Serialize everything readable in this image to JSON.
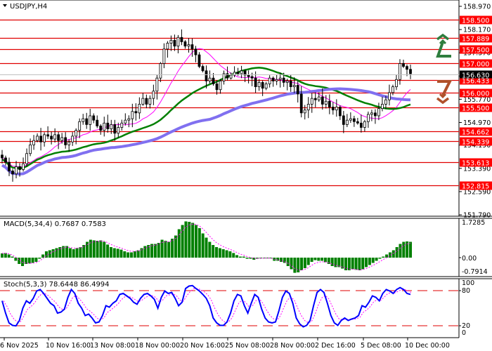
{
  "header": {
    "symbol_title": "USDJPY,H4"
  },
  "colors": {
    "level_line": "#e00000",
    "level_label_bg": "#ff0000",
    "current_price_bg": "#000000",
    "ma_fast": "#ff00ff",
    "ma_mid": "#008000",
    "ma_slow": "#8070f0",
    "macd_hist": "#008000",
    "macd_signal": "#ff00ff",
    "stoch_main": "#0000ff",
    "stoch_signal": "#ff00ff",
    "stoch_level": "#e00000",
    "arrow_up": "#2e7d3e",
    "arrow_down": "#b0502a"
  },
  "price_axis": {
    "ticks": [
      "158.970",
      "158.170",
      "157.370",
      "156.570",
      "155.770",
      "154.970",
      "154.190",
      "153.390",
      "152.590",
      "151.790"
    ],
    "current_price": "156.630"
  },
  "levels": [
    "158.500",
    "157.889",
    "157.500",
    "157.000",
    "156.433",
    "156.000",
    "155.500",
    "154.662",
    "154.339",
    "153.613",
    "152.815"
  ],
  "macd": {
    "label": "MACD(5,34,4) 0.7687 0.7583",
    "axis": [
      "1.7285",
      "0.00",
      "-0.7914"
    ]
  },
  "stoch": {
    "label": "Stoch(5,3,3) 78.6448 86.4994",
    "axis": [
      "100",
      "80",
      "20",
      "0"
    ]
  },
  "time_axis": [
    "6 Nov 2025",
    "10 Nov 16:00",
    "13 Nov 08:00",
    "18 Nov 00:00",
    "20 Nov 16:00",
    "25 Nov 08:00",
    "28 Nov 00:00",
    "2 Dec 16:00",
    "5 Dec 08:00",
    "10 Dec 00:00"
  ],
  "chart_data": [
    {
      "type": "candlestick",
      "title": "USDJPY,H4",
      "ylim": [
        151.79,
        158.97
      ],
      "xlabel": "",
      "ylabel": "",
      "x_ticks": [
        "6 Nov 2025",
        "10 Nov 16:00",
        "13 Nov 08:00",
        "18 Nov 00:00",
        "20 Nov 16:00",
        "25 Nov 08:00",
        "28 Nov 00:00",
        "2 Dec 16:00",
        "5 Dec 08:00",
        "10 Dec 00:00"
      ],
      "horizontal_levels": [
        158.5,
        157.889,
        157.5,
        157.0,
        156.433,
        156.0,
        155.5,
        154.662,
        154.339,
        153.613,
        152.815
      ],
      "current_price": 156.63,
      "close_approx": [
        153.75,
        153.6,
        153.3,
        153.2,
        153.45,
        153.35,
        153.55,
        153.9,
        154.2,
        154.35,
        154.5,
        154.3,
        154.55,
        154.5,
        154.4,
        154.55,
        154.35,
        154.45,
        154.2,
        154.3,
        154.5,
        154.7,
        155.0,
        155.1,
        154.9,
        155.2,
        155.05,
        154.85,
        154.7,
        154.95,
        154.75,
        154.9,
        154.6,
        154.8,
        154.95,
        155.05,
        155.1,
        155.35,
        155.3,
        155.6,
        155.8,
        155.6,
        155.8,
        156.05,
        156.5,
        157.0,
        157.5,
        157.7,
        157.8,
        157.6,
        157.9,
        157.75,
        157.6,
        157.65,
        157.5,
        157.3,
        156.9,
        156.75,
        156.4,
        156.5,
        156.3,
        156.1,
        156.4,
        156.65,
        156.5,
        156.6,
        156.7,
        156.65,
        156.75,
        156.6,
        156.55,
        156.5,
        156.2,
        156.35,
        156.15,
        156.3,
        156.5,
        156.4,
        156.45,
        156.5,
        156.35,
        156.4,
        156.2,
        156.25,
        155.95,
        155.3,
        155.4,
        155.6,
        155.8,
        155.75,
        155.85,
        155.6,
        155.7,
        155.5,
        155.4,
        155.5,
        155.2,
        154.9,
        155.05,
        155.1,
        155.0,
        154.95,
        154.8,
        155.0,
        155.25,
        155.3,
        155.2,
        155.45,
        155.6,
        155.75,
        156.0,
        156.2,
        156.45,
        157.0,
        156.9,
        156.8,
        156.65
      ],
      "series": [
        {
          "name": "MA fast (magenta)",
          "start": 153.75,
          "peak": 156.35,
          "end": 155.75
        },
        {
          "name": "MA mid (green)",
          "start": 153.4,
          "peak": 155.95,
          "end": 155.65
        },
        {
          "name": "MA slow (purple)",
          "start": 152.6,
          "end": 155.5
        }
      ]
    },
    {
      "type": "bar",
      "title": "MACD(5,34,4) 0.7687 0.7583",
      "ylim": [
        -0.7914,
        1.7285
      ],
      "series": [
        {
          "name": "MACD histogram",
          "values": [
            0.2,
            0.22,
            0.15,
            0.05,
            -0.15,
            -0.3,
            -0.4,
            -0.3,
            -0.28,
            -0.25,
            -0.2,
            -0.05,
            0.15,
            0.3,
            0.35,
            0.4,
            0.45,
            0.5,
            0.55,
            0.55,
            0.45,
            0.4,
            0.45,
            0.5,
            0.6,
            0.75,
            0.85,
            0.82,
            0.8,
            0.82,
            0.75,
            0.62,
            0.5,
            0.45,
            0.42,
            0.38,
            0.3,
            0.25,
            0.25,
            0.3,
            0.35,
            0.45,
            0.55,
            0.6,
            0.65,
            0.65,
            0.7,
            0.85,
            0.8,
            0.75,
            0.9,
            1.05,
            1.35,
            1.55,
            1.72,
            1.7,
            1.65,
            1.55,
            1.4,
            1.15,
            0.95,
            0.75,
            0.6,
            0.5,
            0.45,
            0.4,
            0.35,
            0.3,
            0.22,
            0.12,
            0.05,
            0.05,
            -0.05,
            -0.05,
            -0.1,
            -0.05,
            -0.02,
            -0.02,
            -0.02,
            -0.02,
            -0.15,
            -0.15,
            -0.2,
            -0.25,
            -0.4,
            -0.55,
            -0.72,
            -0.7,
            -0.6,
            -0.5,
            -0.35,
            -0.2,
            -0.12,
            -0.15,
            -0.15,
            -0.22,
            -0.3,
            -0.4,
            -0.45,
            -0.45,
            -0.52,
            -0.6,
            -0.6,
            -0.55,
            -0.58,
            -0.6,
            -0.55,
            -0.45,
            -0.35,
            -0.25,
            -0.15,
            -0.05,
            0.05,
            0.15,
            0.25,
            0.35,
            0.5,
            0.65,
            0.75,
            0.77,
            0.75
          ]
        },
        {
          "name": "Signal",
          "values": "smoothed dotted line following histogram, ends at 0.7583"
        }
      ]
    },
    {
      "type": "line",
      "title": "Stoch(5,3,3) 78.6448 86.4994",
      "ylim": [
        0,
        100
      ],
      "levels": [
        80,
        20
      ],
      "series": [
        {
          "name": "%K",
          "values": [
            65,
            40,
            20,
            15,
            14,
            25,
            50,
            65,
            60,
            70,
            85,
            88,
            80,
            70,
            60,
            55,
            40,
            42,
            48,
            72,
            88,
            80,
            60,
            50,
            35,
            38,
            30,
            20,
            22,
            35,
            55,
            52,
            60,
            65,
            78,
            80,
            75,
            70,
            62,
            58,
            70,
            78,
            80,
            75,
            68,
            50,
            72,
            85,
            80,
            82,
            70,
            55,
            62,
            90,
            95,
            96,
            90,
            85,
            78,
            70,
            55,
            30,
            20,
            15,
            15,
            22,
            40,
            65,
            78,
            75,
            55,
            40,
            60,
            78,
            72,
            48,
            30,
            22,
            20,
            22,
            45,
            72,
            85,
            80,
            60,
            30,
            18,
            12,
            15,
            25,
            55,
            82,
            88,
            82,
            60,
            35,
            20,
            15,
            25,
            30,
            25,
            28,
            30,
            35,
            55,
            52,
            62,
            75,
            72,
            65,
            80,
            88,
            85,
            80,
            88,
            92,
            88,
            80,
            78
          ]
        },
        {
          "name": "%D",
          "values": "dotted magenta lagging %K, ends at 86.4994"
        }
      ]
    }
  ]
}
